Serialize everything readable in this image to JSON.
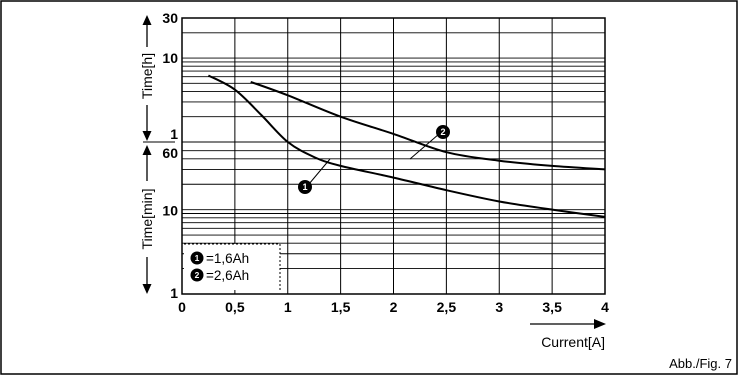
{
  "figure_label": "Abb./Fig. 7",
  "chart_data": {
    "type": "line",
    "x_label": "Current[A]",
    "x_ticks": [
      "0",
      "0,5",
      "1",
      "1,5",
      "2",
      "2,5",
      "3",
      "3,5",
      "4"
    ],
    "xlim": [
      0,
      4
    ],
    "y_scale": "log",
    "upper_axis": {
      "label": "Time[h]",
      "unit": "hours",
      "range": [
        1,
        30
      ],
      "ticks": [
        {
          "label": "30",
          "value": 30
        },
        {
          "label": "10",
          "value": 10
        },
        {
          "label": "1",
          "value": 1
        }
      ]
    },
    "lower_axis": {
      "label": "Time[min]",
      "unit": "minutes",
      "range": [
        1,
        60
      ],
      "ticks": [
        {
          "label": "60",
          "value": 60
        },
        {
          "label": "10",
          "value": 10
        },
        {
          "label": "1",
          "value": 1
        }
      ]
    },
    "grid": true,
    "series": [
      {
        "name": "=1,6Ah",
        "marker": "1",
        "unit": "minutes",
        "x": [
          0.25,
          0.5,
          0.75,
          1.0,
          1.25,
          1.5,
          2.0,
          2.5,
          3.0,
          3.5,
          4.0
        ],
        "y": [
          372,
          252,
          126,
          60,
          42,
          33,
          24,
          17,
          12.5,
          10,
          8.2
        ]
      },
      {
        "name": "=2,6Ah",
        "marker": "2",
        "unit": "minutes",
        "x": [
          0.65,
          1.0,
          1.5,
          2.0,
          2.5,
          3.0,
          3.5,
          4.0
        ],
        "y": [
          312,
          216,
          120,
          75,
          48,
          38,
          33,
          30
        ]
      }
    ],
    "legend_position": "bottom-left"
  }
}
